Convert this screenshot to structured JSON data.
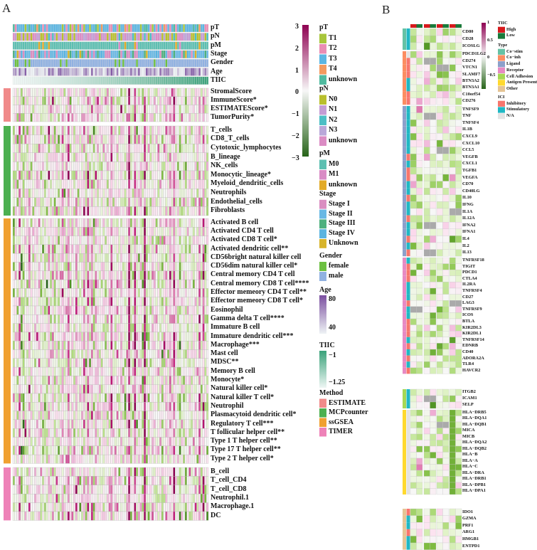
{
  "panel_a": {
    "letter": "A",
    "annotation_rows": [
      "pT",
      "pN",
      "pM",
      "Stage",
      "Gender",
      "Age",
      "TIIC"
    ],
    "groups": [
      {
        "method": "ESTIMATE",
        "rows": [
          "StromalScore",
          "ImmuneScore*",
          "ESTIMATEScore*",
          "TumorPurity*"
        ]
      },
      {
        "method": "MCPcounter",
        "rows": [
          "T_cells",
          "CD8_T_cells",
          "Cytotoxic_lymphocytes",
          "B_lineage",
          "NK_cells",
          "Monocytic_lineage*",
          "Myeloid_dendritic_cells",
          "Neutrophils",
          "Endothelial_cells",
          "Fibroblasts"
        ]
      },
      {
        "method": "ssGSEA",
        "rows": [
          "Activated B cell",
          "Activated CD4 T cell",
          "Activated CD8 T cell*",
          "Activated dendritic cell**",
          "CD56bright natural killer cell",
          "CD56dim natural killer cell*",
          "Central memory CD4 T cell",
          "Central memory CD8 T cell****",
          "Effector memeory CD4 T cell**",
          "Effector memeory CD8 T cell*",
          "Eosinophil",
          "Gamma delta T cell****",
          "Immature  B cell",
          "Immature dendritic cell***",
          "Macrophage***",
          "Mast cell",
          "MDSC**",
          "Memory B cell",
          "Monocyte*",
          "Natural killer cell*",
          "Natural killer T cell*",
          "Neutrophil",
          "Plasmacytoid dendritic cell*",
          "Regulatory T cell***",
          "T follicular helper cell**",
          "Type 1 T helper cell**",
          "Type 17 T helper cell**",
          "Type 2 T helper cell*"
        ]
      },
      {
        "method": "TIMER",
        "rows": [
          "B_cell",
          "T_cell_CD4",
          "T_cell_CD8",
          "Neutrophil.1",
          "Macrophage.1",
          "DC"
        ]
      }
    ],
    "legend": {
      "colorbar": {
        "ticks": [
          "3",
          "2",
          "1",
          "0",
          "−1",
          "−2",
          "−3"
        ],
        "range": [
          -3,
          3
        ],
        "colors": [
          "#276419",
          "#f7f7f7",
          "#8e0152"
        ]
      },
      "pT": {
        "title": "pT",
        "items": [
          {
            "label": "T1",
            "color": "#a8c63c"
          },
          {
            "label": "T2",
            "color": "#ea8db4"
          },
          {
            "label": "T3",
            "color": "#5cb6e2"
          },
          {
            "label": "T4",
            "color": "#f39a5e"
          },
          {
            "label": "unknown",
            "color": "#4fba9f"
          }
        ]
      },
      "pN": {
        "title": "pN",
        "items": [
          {
            "label": "N0",
            "color": "#b9bf2d"
          },
          {
            "label": "N1",
            "color": "#c49cd4"
          },
          {
            "label": "N2",
            "color": "#4cbec5"
          },
          {
            "label": "N3",
            "color": "#b9a7d9"
          },
          {
            "label": "unknown",
            "color": "#db8cc4"
          }
        ]
      },
      "pM": {
        "title": "pM",
        "items": [
          {
            "label": "M0",
            "color": "#5cbfb1"
          },
          {
            "label": "M1",
            "color": "#d98bc5"
          },
          {
            "label": "unknown",
            "color": "#e2aa26"
          }
        ]
      },
      "Stage": {
        "title": "Stage",
        "items": [
          {
            "label": "Stage I",
            "color": "#da8dc1"
          },
          {
            "label": "Stage II",
            "color": "#68b8e4"
          },
          {
            "label": "Stage III",
            "color": "#4db07e"
          },
          {
            "label": "Stage IV",
            "color": "#5ab4e0"
          },
          {
            "label": "Unknown",
            "color": "#d7b42b"
          }
        ]
      },
      "Gender": {
        "title": "Gender",
        "items": [
          {
            "label": "female",
            "color": "#6dc041"
          },
          {
            "label": "male",
            "color": "#90b1e1"
          }
        ]
      },
      "Age": {
        "title": "Age",
        "high": "80",
        "low": "40",
        "colors": [
          "#eef3f5",
          "#7b4fa0"
        ]
      },
      "TIIC": {
        "title": "TIIC",
        "high": "−1",
        "low": "−1.25",
        "colors": [
          "#eef6f4",
          "#3aa27a"
        ]
      },
      "Method": {
        "title": "Method",
        "items": [
          {
            "label": "ESTIMATE",
            "color": "#f08a8a"
          },
          {
            "label": "MCPcounter",
            "color": "#4cb050"
          },
          {
            "label": "ssGSEA",
            "color": "#f0a030"
          },
          {
            "label": "TIMER",
            "color": "#ee82b8"
          }
        ]
      }
    }
  },
  "panel_b": {
    "letter": "B",
    "column_annotation": {
      "title": "TIIC",
      "pattern": [
        "High",
        "Low",
        "High",
        "Low",
        "High",
        "Low",
        "High",
        "Low"
      ]
    },
    "groups": [
      {
        "type": "Co-stim",
        "rows": [
          "CD80",
          "CD28",
          "ICOSLG"
        ],
        "ici": [
          "Stimulatory",
          "Stimulatory",
          "Stimulatory"
        ]
      },
      {
        "type": "Co-inh",
        "rows": [
          "PDCD1LG2",
          "CD274",
          "VTCN1",
          "SLAMF7",
          "BTN3A2",
          "BTN3A1",
          "C10orf54",
          "CD276"
        ],
        "ici": [
          "N/A",
          "Inhibitory",
          "Inhibitory",
          "Inhibitory",
          "Stimulatory",
          "Stimulatory",
          "Inhibitory",
          "Inhibitory"
        ]
      },
      {
        "type": "Ligand",
        "rows": [
          "TNFSF9",
          "TNF",
          "TNFSF4",
          "IL1B",
          "CXCL9",
          "CXCL10",
          "CCL5",
          "VEGFB",
          "CXCL1",
          "TGFB1",
          "VEGFA",
          "CD70",
          "CD40LG",
          "IL10",
          "IFNG",
          "IL1A",
          "IL12A",
          "IFNA2",
          "IFNA1",
          "IL4",
          "IL2",
          "IL13"
        ],
        "ici": [
          "Stimulatory",
          "Stimulatory",
          "Stimulatory",
          "Stimulatory",
          "Stimulatory",
          "Stimulatory",
          "Stimulatory",
          "Inhibitory",
          "Stimulatory",
          "Inhibitory",
          "Inhibitory",
          "Stimulatory",
          "Stimulatory",
          "Inhibitory",
          "Stimulatory",
          "Stimulatory",
          "Inhibitory",
          "Stimulatory",
          "Stimulatory",
          "Inhibitory",
          "Stimulatory",
          "Inhibitory"
        ]
      },
      {
        "type": "Receptor",
        "rows": [
          "TNFRSF18",
          "TIGIT",
          "PDCD1",
          "CTLA4",
          "IL2RA",
          "TNFRSF4",
          "CD27",
          "LAG3",
          "TNFRSF9",
          "ICOS",
          "BTLA",
          "KIR2DL3",
          "KIR2DL1",
          "TNFRSF14",
          "EDNRB",
          "CD40",
          "ADORA2A",
          "TLR4",
          "HAVCR2"
        ],
        "ici": [
          "Stimulatory",
          "Inhibitory",
          "Inhibitory",
          "Inhibitory",
          "Stimulatory",
          "Stimulatory",
          "Stimulatory",
          "Inhibitory",
          "Stimulatory",
          "Stimulatory",
          "Inhibitory",
          "Inhibitory",
          "Inhibitory",
          "Stimulatory",
          "Inhibitory",
          "Stimulatory",
          "Inhibitory",
          "Stimulatory",
          "Inhibitory"
        ]
      },
      {
        "type": "Cell Adhesion",
        "rows": [
          "ITGB2",
          "ICAM1",
          "SELP"
        ],
        "ici": [
          "Stimulatory",
          "Stimulatory",
          "Stimulatory"
        ]
      },
      {
        "type": "Antigen Presentation",
        "rows": [
          "HLA−DRB5",
          "HLA−DQA1",
          "HLA−DQB1",
          "MICA",
          "MICB",
          "HLA−DQA2",
          "HLA−DQB2",
          "HLA−B",
          "HLA−A",
          "HLA−C",
          "HLA−DRA",
          "HLA−DRB1",
          "HLA−DPB1",
          "HLA−DPA1"
        ],
        "ici": [
          "N/A",
          "N/A",
          "N/A",
          "N/A",
          "N/A",
          "N/A",
          "N/A",
          "N/A",
          "N/A",
          "N/A",
          "N/A",
          "N/A",
          "N/A",
          "N/A"
        ]
      },
      {
        "type": "Other",
        "rows": [
          "IDO1",
          "GZMA",
          "PRF1",
          "ARG1",
          "HMGB1",
          "ENTPD1"
        ],
        "ici": [
          "Inhibitory",
          "Stimulatory",
          "Stimulatory",
          "Inhibitory",
          "Stimulatory",
          "Stimulatory"
        ]
      }
    ],
    "legend": {
      "colorbar": {
        "ticks": [
          "1",
          "0.5",
          "0",
          "−0.5"
        ],
        "range": [
          -0.75,
          1
        ],
        "colors": [
          "#276419",
          "#f7f7f7",
          "#8e0152"
        ]
      },
      "TIIC": {
        "title": "TIIC",
        "items": [
          {
            "label": "High",
            "color": "#d7191c"
          },
          {
            "label": "Low",
            "color": "#1a7a3a"
          }
        ]
      },
      "Type": {
        "title": "Type",
        "items": [
          {
            "label": "Co−stim",
            "color": "#66c2a5"
          },
          {
            "label": "Co−inh",
            "color": "#fc8d62"
          },
          {
            "label": "Ligand",
            "color": "#8da0cb"
          },
          {
            "label": "Receptor",
            "color": "#e78ac3"
          },
          {
            "label": "Cell Adhesion",
            "color": "#a6d854"
          },
          {
            "label": "Antigen Presentation",
            "color": "#ffd92f"
          },
          {
            "label": "Other",
            "color": "#e5c494"
          }
        ]
      },
      "ICI": {
        "title": "ICI",
        "items": [
          {
            "label": "Inhibitory",
            "color": "#f8766d"
          },
          {
            "label": "Stimulatory",
            "color": "#20b8c4"
          },
          {
            "label": "N/A",
            "color": "#e3e3e3"
          }
        ]
      }
    }
  },
  "chart_data": [
    {
      "type": "heatmap",
      "panel": "A",
      "row_groups": [
        "ESTIMATE",
        "MCPcounter",
        "ssGSEA",
        "TIMER"
      ],
      "column_annotations": [
        "pT",
        "pN",
        "pM",
        "Stage",
        "Gender",
        "Age",
        "TIIC"
      ],
      "color_range": [
        -3,
        3
      ],
      "grid": true,
      "legend_placement": "right"
    },
    {
      "type": "heatmap",
      "panel": "B",
      "row_groups": [
        "Co-stim",
        "Co-inh",
        "Ligand",
        "Receptor",
        "Cell Adhesion",
        "Antigen Presentation",
        "Other"
      ],
      "column_annotations": [
        "TIIC"
      ],
      "color_range": [
        -0.75,
        1
      ],
      "missing_color": "#aaaaaa",
      "grid": true,
      "legend_placement": "right"
    }
  ]
}
